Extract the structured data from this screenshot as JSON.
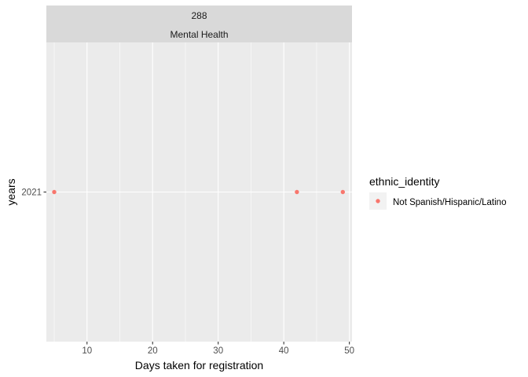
{
  "chart_data": {
    "type": "scatter",
    "facet": {
      "strip_lines": [
        "288",
        "Mental Health"
      ]
    },
    "xlabel": "Days taken for registration",
    "ylabel": "years",
    "xlim": [
      3.8,
      50.4
    ],
    "x_ticks": [
      10,
      20,
      30,
      40,
      50
    ],
    "x_tick_labels": [
      "10",
      "20",
      "30",
      "40",
      "50"
    ],
    "y_categories": [
      "2021"
    ],
    "series": [
      {
        "name": "Not Spanish/Hispanic/Latino",
        "color": "#F8766D",
        "points": [
          {
            "x": 5,
            "y": "2021"
          },
          {
            "x": 42,
            "y": "2021"
          },
          {
            "x": 49,
            "y": "2021"
          }
        ]
      }
    ],
    "legend": {
      "title": "ethnic_identity",
      "position": "right",
      "entries": [
        "Not Spanish/Hispanic/Latino"
      ]
    },
    "grid": true,
    "colors": {
      "panel_background": "#EBEBEB",
      "strip_background": "#D9D9D9",
      "grid_line": "#FFFFFF"
    }
  }
}
